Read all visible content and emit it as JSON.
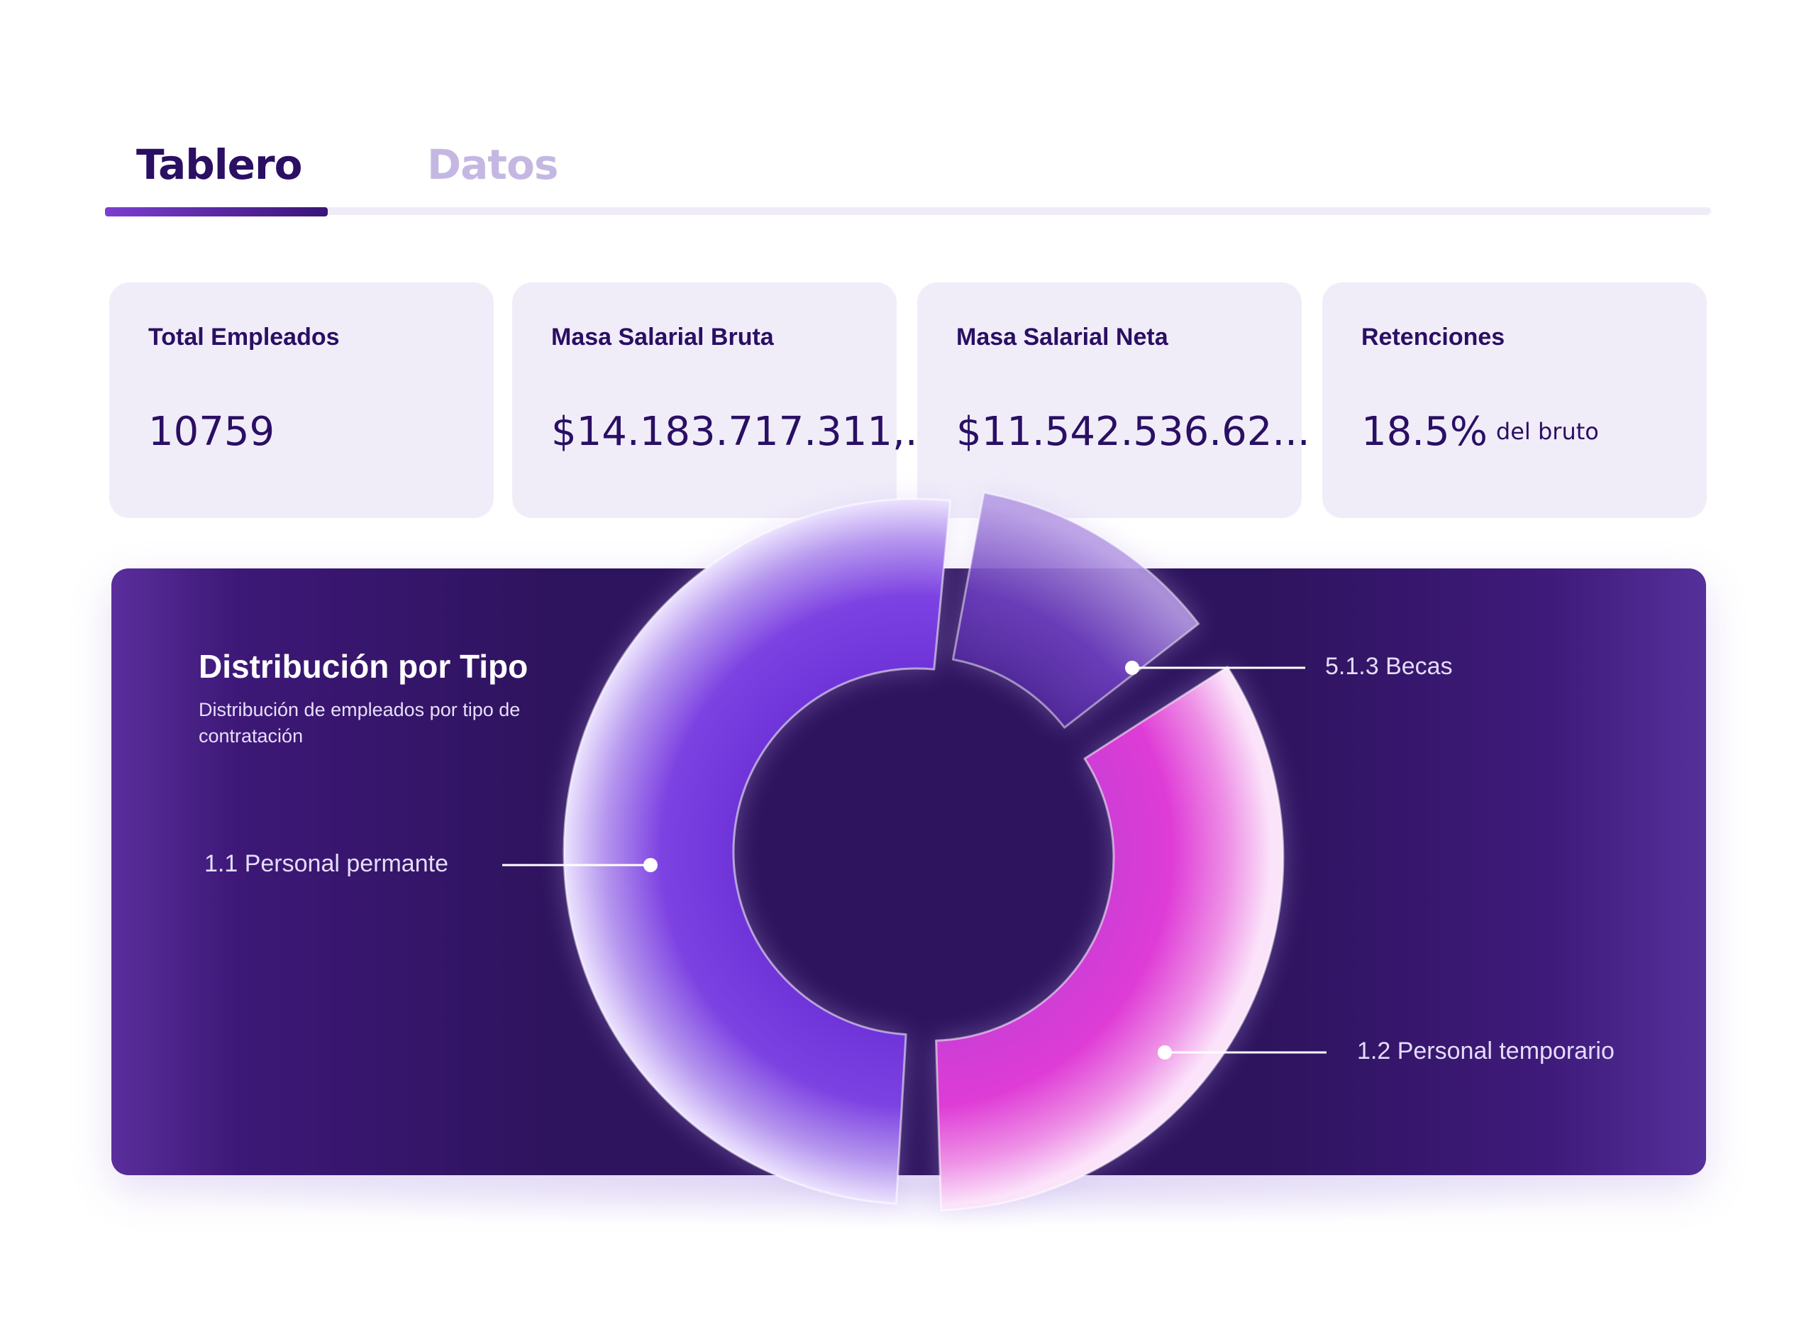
{
  "tabs": [
    {
      "label": "Tablero",
      "active": true
    },
    {
      "label": "Datos",
      "active": false
    }
  ],
  "cards": {
    "employees": {
      "title": "Total Empleados",
      "value": "10759"
    },
    "gross": {
      "title": "Masa Salarial Bruta",
      "value": "$14.183.717.311,..."
    },
    "net": {
      "title": "Masa Salarial Neta",
      "value": "$11.542.536.62..."
    },
    "withholdings": {
      "title": "Retenciones",
      "value": "18.5%",
      "suffix": "del bruto"
    }
  },
  "distribution": {
    "title": "Distribución por Tipo",
    "subtitle": "Distribución de empleados por tipo de contratación"
  },
  "chart_data": {
    "type": "pie",
    "variant": "donut",
    "title": "Distribución por Tipo",
    "subtitle": "Distribución de empleados por tipo de contratación",
    "categories": [
      "1.1 Personal permante",
      "5.1.3 Becas",
      "1.2 Personal temporario"
    ],
    "values": [
      52,
      13,
      35
    ],
    "colors": [
      "#7a3ce0",
      "#6a32c4",
      "#e23fd6"
    ],
    "legend": "callouts"
  }
}
